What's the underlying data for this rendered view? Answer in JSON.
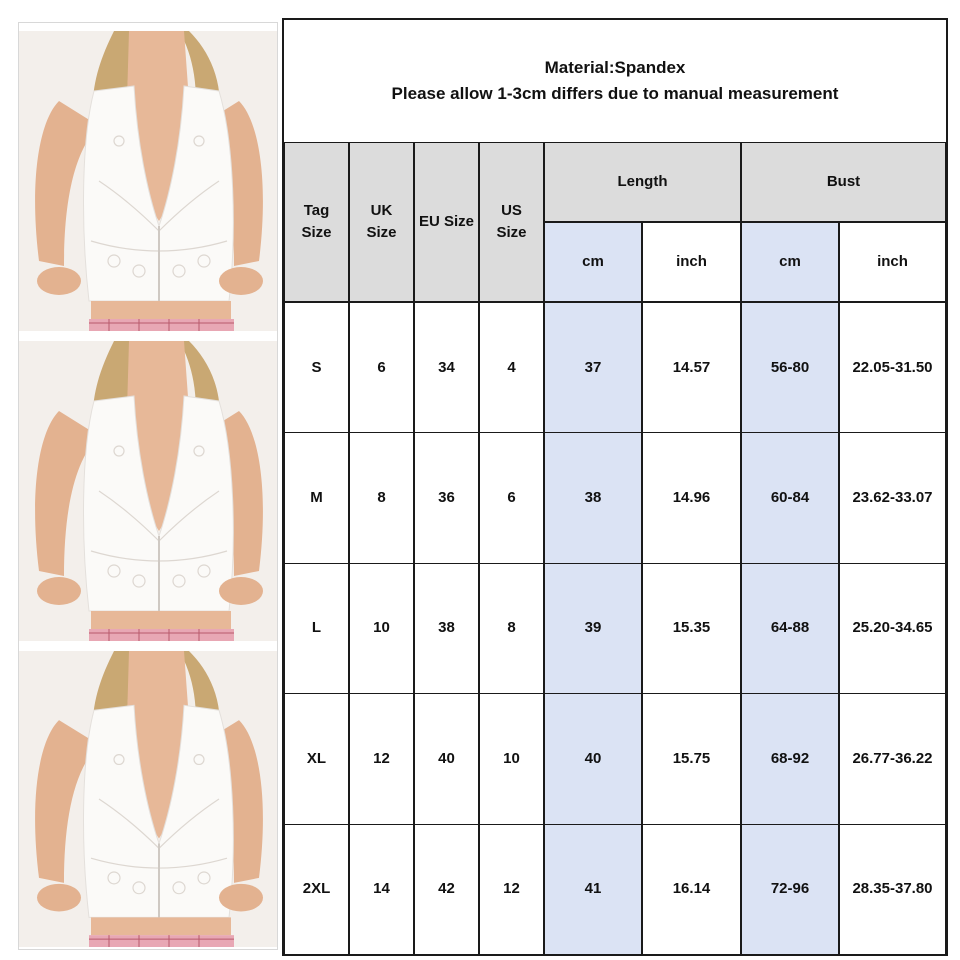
{
  "header": {
    "line1": "Material:Spandex",
    "line2": "Please allow 1-3cm differs due to manual measurement"
  },
  "columns": {
    "tag": "Tag Size",
    "uk": "UK Size",
    "eu": "EU Size",
    "us": "US Size",
    "length": "Length",
    "bust": "Bust",
    "cm": "cm",
    "inch": "inch"
  },
  "rows": [
    {
      "tag": "S",
      "uk": "6",
      "eu": "34",
      "us": "4",
      "length_cm": "37",
      "length_inch": "14.57",
      "bust_cm": "56-80",
      "bust_inch": "22.05-31.50"
    },
    {
      "tag": "M",
      "uk": "8",
      "eu": "36",
      "us": "6",
      "length_cm": "38",
      "length_inch": "14.96",
      "bust_cm": "60-84",
      "bust_inch": "23.62-33.07"
    },
    {
      "tag": "L",
      "uk": "10",
      "eu": "38",
      "us": "8",
      "length_cm": "39",
      "length_inch": "15.35",
      "bust_cm": "64-88",
      "bust_inch": "25.20-34.65"
    },
    {
      "tag": "XL",
      "uk": "12",
      "eu": "40",
      "us": "10",
      "length_cm": "40",
      "length_inch": "15.75",
      "bust_cm": "68-92",
      "bust_inch": "26.77-36.22"
    },
    {
      "tag": "2XL",
      "uk": "14",
      "eu": "42",
      "us": "12",
      "length_cm": "41",
      "length_inch": "16.14",
      "bust_cm": "72-96",
      "bust_inch": "28.35-37.80"
    }
  ],
  "colors": {
    "header_gray": "#dcdcdc",
    "cm_blue": "#dbe3f4",
    "border": "#1a1a1a"
  }
}
